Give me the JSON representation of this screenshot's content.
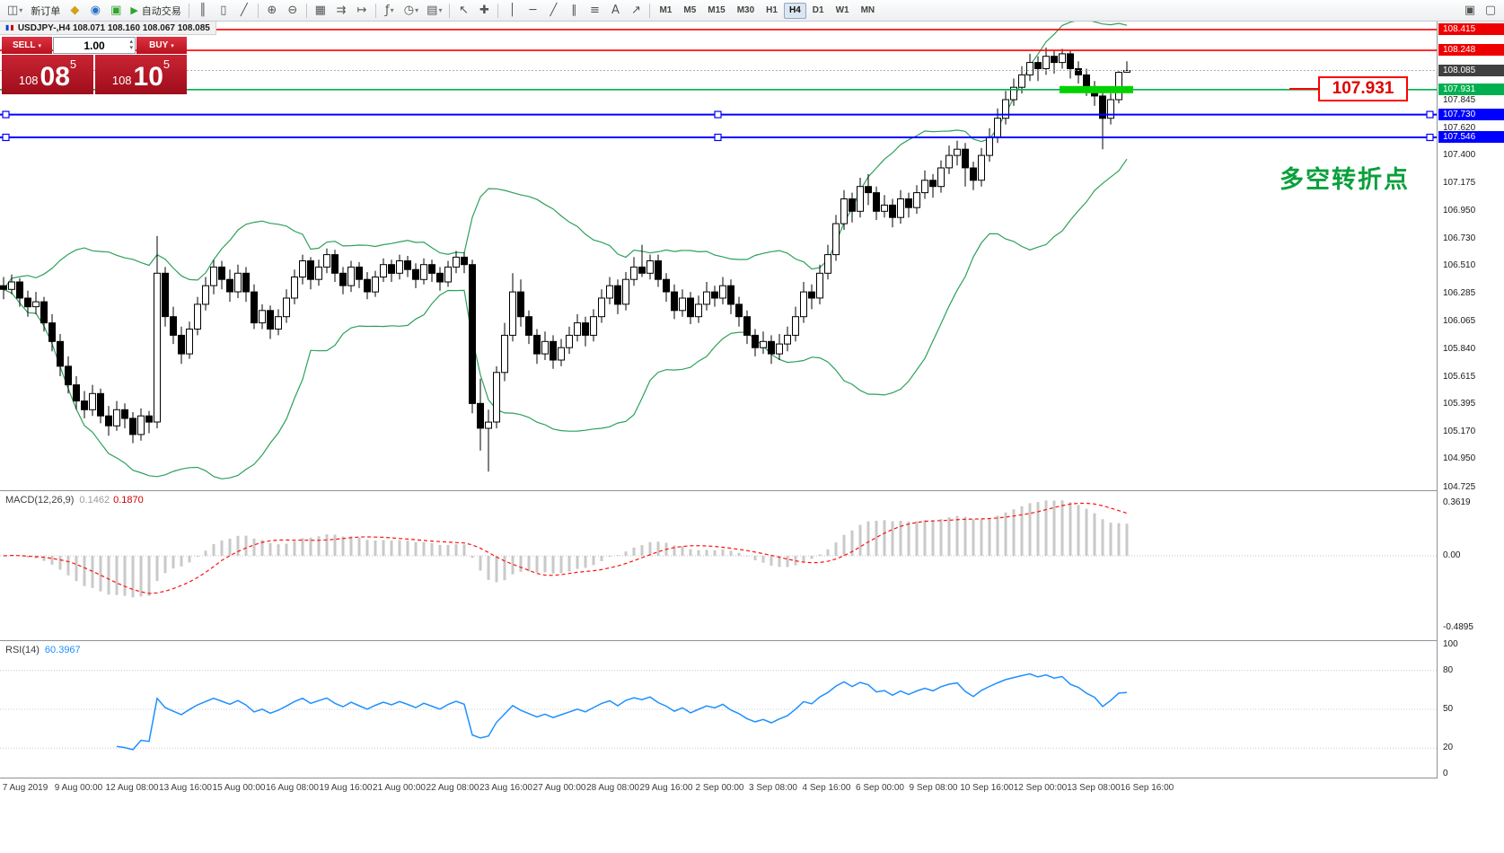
{
  "toolbar": {
    "new_order_label": "新订单",
    "autotrading_label": "自动交易",
    "timeframes": [
      "M1",
      "M5",
      "M15",
      "M30",
      "H1",
      "H4",
      "D1",
      "W1",
      "MN"
    ],
    "active_timeframe": "H4",
    "icons": {
      "new_chart": "◫",
      "market_watch": "◆",
      "navigator": "◉",
      "terminal": "▣",
      "play": "▶",
      "bar_chart": "║",
      "candles": "▯",
      "line_chart": "╱",
      "zoom_in": "⊕",
      "zoom_out": "⊖",
      "tile_windows": "▦",
      "auto_scroll": "⇉",
      "chart_shift": "↦",
      "indicators": "ƒ",
      "periods": "◷",
      "templates": "▤",
      "cursor": "↖",
      "crosshair": "✚",
      "vertical_line": "│",
      "horizontal_line": "─",
      "trendline": "╱",
      "channel": "∥",
      "fibonacci": "≡",
      "text": "A",
      "arrow": "↗",
      "window_a": "▣",
      "window_b": "▢",
      "caret": "▾",
      "spin_up": "▴",
      "spin_down": "▾"
    }
  },
  "window": {
    "chart_title": "USDJPY-,H4  108.071 108.160 108.067 108.085"
  },
  "trade_panel": {
    "sell_label": "SELL",
    "buy_label": "BUY",
    "volume": "1.00",
    "sell_price": {
      "prefix": "108",
      "big": "08",
      "sup": "5"
    },
    "buy_price": {
      "prefix": "108",
      "big": "10",
      "sup": "5"
    }
  },
  "annotations": {
    "price_callout": "107.931",
    "turning_point": "多空转折点"
  },
  "price_scale": {
    "ticks": [
      "107.845",
      "107.620",
      "107.400",
      "107.175",
      "106.950",
      "106.730",
      "106.510",
      "106.285",
      "106.065",
      "105.840",
      "105.615",
      "105.395",
      "105.170",
      "104.950",
      "104.725"
    ],
    "badges": [
      {
        "label": "108.415",
        "color": "#ee0000"
      },
      {
        "label": "108.248",
        "color": "#ee0000"
      },
      {
        "label": "108.085",
        "color": "#404040"
      },
      {
        "label": "107.931",
        "color": "#00b050"
      },
      {
        "label": "107.730",
        "color": "#0000ff"
      },
      {
        "label": "107.546",
        "color": "#0000ff"
      }
    ]
  },
  "indicators": {
    "macd": {
      "label": "MACD(12,26,9)",
      "value_main": "0.1462",
      "value_signal": "0.1870",
      "scale": [
        "0.3619",
        "0.00",
        "-0.4895"
      ],
      "params": [
        12,
        26,
        9
      ]
    },
    "rsi": {
      "label": "RSI(14)",
      "value": "60.3967",
      "scale": [
        "100",
        "80",
        "50",
        "20",
        "0"
      ],
      "period": 14,
      "levels": [
        80,
        50,
        20
      ]
    }
  },
  "time_axis": [
    "7 Aug 2019",
    "9 Aug 00:00",
    "12 Aug 08:00",
    "13 Aug 16:00",
    "15 Aug 00:00",
    "16 Aug 08:00",
    "19 Aug 16:00",
    "21 Aug 00:00",
    "22 Aug 08:00",
    "23 Aug 16:00",
    "27 Aug 00:00",
    "28 Aug 08:00",
    "29 Aug 16:00",
    "2 Sep 00:00",
    "3 Sep 08:00",
    "4 Sep 16:00",
    "6 Sep 00:00",
    "9 Sep 08:00",
    "10 Sep 16:00",
    "12 Sep 00:00",
    "13 Sep 08:00",
    "16 Sep 16:00"
  ],
  "chart_data": {
    "type": "candlestick",
    "symbol": "USDJPY-",
    "timeframe": "H4",
    "last_quote": {
      "open": 108.071,
      "high": 108.16,
      "low": 108.067,
      "close": 108.085
    },
    "y_axis_range": [
      104.7,
      108.48
    ],
    "bollinger": {
      "period": 20,
      "deviation": 2,
      "color": "#2ca05a"
    },
    "bid_price": 108.085,
    "h_lines": [
      {
        "price": 108.415,
        "color": "#ff0000"
      },
      {
        "price": 108.248,
        "color": "#ff0000"
      },
      {
        "price": 107.931,
        "color": "#00b050"
      },
      {
        "price": 107.73,
        "color": "#0000ff",
        "selected": true
      },
      {
        "price": 107.546,
        "color": "#0000ff",
        "selected": true
      }
    ],
    "support_zone": {
      "price": 107.931,
      "color": "#00d200"
    },
    "ohlc": [
      [
        106.35,
        106.42,
        106.24,
        106.32
      ],
      [
        106.32,
        106.44,
        106.28,
        106.38
      ],
      [
        106.38,
        106.41,
        106.18,
        106.25
      ],
      [
        106.25,
        106.31,
        106.1,
        106.18
      ],
      [
        106.18,
        106.3,
        106.12,
        106.22
      ],
      [
        106.22,
        106.26,
        105.98,
        106.05
      ],
      [
        106.05,
        106.12,
        105.82,
        105.9
      ],
      [
        105.9,
        105.96,
        105.62,
        105.7
      ],
      [
        105.7,
        105.78,
        105.48,
        105.55
      ],
      [
        105.55,
        105.62,
        105.35,
        105.42
      ],
      [
        105.42,
        105.5,
        105.28,
        105.35
      ],
      [
        105.35,
        105.55,
        105.3,
        105.48
      ],
      [
        105.48,
        105.52,
        105.24,
        105.3
      ],
      [
        105.3,
        105.38,
        105.14,
        105.22
      ],
      [
        105.22,
        105.42,
        105.18,
        105.35
      ],
      [
        105.35,
        105.4,
        105.2,
        105.28
      ],
      [
        105.28,
        105.33,
        105.08,
        105.15
      ],
      [
        105.15,
        105.36,
        105.1,
        105.3
      ],
      [
        105.3,
        105.34,
        105.16,
        105.25
      ],
      [
        105.25,
        106.75,
        105.2,
        106.45
      ],
      [
        106.45,
        106.5,
        106.02,
        106.1
      ],
      [
        106.1,
        106.18,
        105.88,
        105.95
      ],
      [
        105.95,
        106.02,
        105.72,
        105.8
      ],
      [
        105.8,
        106.06,
        105.76,
        106.0
      ],
      [
        106.0,
        106.26,
        105.95,
        106.2
      ],
      [
        106.2,
        106.42,
        106.15,
        106.35
      ],
      [
        106.35,
        106.56,
        106.28,
        106.5
      ],
      [
        106.5,
        106.55,
        106.32,
        106.4
      ],
      [
        106.4,
        106.48,
        106.22,
        106.3
      ],
      [
        106.3,
        106.52,
        106.25,
        106.45
      ],
      [
        106.45,
        106.5,
        106.22,
        106.3
      ],
      [
        106.3,
        106.36,
        106.0,
        106.05
      ],
      [
        106.05,
        106.2,
        106.0,
        106.15
      ],
      [
        106.15,
        106.19,
        105.92,
        106.0
      ],
      [
        106.0,
        106.16,
        105.95,
        106.1
      ],
      [
        106.1,
        106.32,
        106.05,
        106.25
      ],
      [
        106.25,
        106.48,
        106.2,
        106.42
      ],
      [
        106.42,
        106.6,
        106.36,
        106.55
      ],
      [
        106.55,
        106.58,
        106.32,
        106.4
      ],
      [
        106.4,
        106.56,
        106.35,
        106.5
      ],
      [
        106.5,
        106.65,
        106.45,
        106.6
      ],
      [
        106.6,
        106.64,
        106.38,
        106.45
      ],
      [
        106.45,
        106.5,
        106.28,
        106.35
      ],
      [
        106.35,
        106.55,
        106.3,
        106.5
      ],
      [
        106.5,
        106.54,
        106.33,
        106.4
      ],
      [
        106.4,
        106.46,
        106.24,
        106.3
      ],
      [
        106.3,
        106.47,
        106.26,
        106.42
      ],
      [
        106.42,
        106.57,
        106.38,
        106.52
      ],
      [
        106.52,
        106.56,
        106.38,
        106.45
      ],
      [
        106.45,
        106.6,
        106.4,
        106.55
      ],
      [
        106.55,
        106.59,
        106.42,
        106.48
      ],
      [
        106.48,
        106.53,
        106.33,
        106.4
      ],
      [
        106.4,
        106.57,
        106.36,
        106.52
      ],
      [
        106.52,
        106.56,
        106.38,
        106.45
      ],
      [
        106.45,
        106.5,
        106.31,
        106.38
      ],
      [
        106.38,
        106.55,
        106.34,
        106.5
      ],
      [
        106.5,
        106.63,
        106.45,
        106.58
      ],
      [
        106.58,
        106.62,
        106.45,
        106.52
      ],
      [
        106.52,
        106.56,
        105.32,
        105.4
      ],
      [
        105.4,
        105.6,
        105.02,
        105.2
      ],
      [
        105.2,
        105.35,
        104.85,
        105.25
      ],
      [
        105.25,
        105.7,
        105.2,
        105.65
      ],
      [
        105.65,
        106.05,
        105.58,
        105.95
      ],
      [
        105.95,
        106.45,
        105.9,
        106.3
      ],
      [
        106.3,
        106.4,
        106.02,
        106.1
      ],
      [
        106.1,
        106.15,
        105.88,
        105.95
      ],
      [
        105.95,
        106.0,
        105.72,
        105.8
      ],
      [
        105.8,
        105.98,
        105.75,
        105.9
      ],
      [
        105.9,
        105.95,
        105.68,
        105.75
      ],
      [
        105.75,
        105.92,
        105.7,
        105.85
      ],
      [
        105.85,
        106.02,
        105.8,
        105.95
      ],
      [
        105.95,
        106.12,
        105.9,
        106.05
      ],
      [
        106.05,
        106.1,
        105.86,
        105.95
      ],
      [
        105.95,
        106.16,
        105.9,
        106.1
      ],
      [
        106.1,
        106.32,
        106.05,
        106.25
      ],
      [
        106.25,
        106.42,
        106.2,
        106.35
      ],
      [
        106.35,
        106.4,
        106.12,
        106.2
      ],
      [
        106.2,
        106.46,
        106.15,
        106.4
      ],
      [
        106.4,
        106.58,
        106.35,
        106.5
      ],
      [
        106.5,
        106.68,
        106.42,
        106.45
      ],
      [
        106.45,
        106.6,
        106.4,
        106.55
      ],
      [
        106.55,
        106.6,
        106.34,
        106.4
      ],
      [
        106.4,
        106.45,
        106.22,
        106.3
      ],
      [
        106.3,
        106.36,
        106.08,
        106.15
      ],
      [
        106.15,
        106.32,
        106.1,
        106.25
      ],
      [
        106.25,
        106.3,
        106.04,
        106.1
      ],
      [
        106.1,
        106.27,
        106.05,
        106.2
      ],
      [
        106.2,
        106.38,
        106.15,
        106.3
      ],
      [
        106.3,
        106.35,
        106.18,
        106.25
      ],
      [
        106.25,
        106.42,
        106.2,
        106.35
      ],
      [
        106.35,
        106.4,
        106.12,
        106.2
      ],
      [
        106.2,
        106.26,
        106.02,
        106.1
      ],
      [
        106.1,
        106.15,
        105.88,
        105.95
      ],
      [
        105.95,
        106.0,
        105.78,
        105.85
      ],
      [
        105.85,
        105.98,
        105.8,
        105.9
      ],
      [
        105.9,
        105.95,
        105.72,
        105.8
      ],
      [
        105.8,
        105.96,
        105.75,
        105.88
      ],
      [
        105.88,
        106.02,
        105.82,
        105.95
      ],
      [
        105.95,
        106.18,
        105.9,
        106.1
      ],
      [
        106.1,
        106.38,
        106.05,
        106.3
      ],
      [
        106.3,
        106.36,
        106.16,
        106.25
      ],
      [
        106.25,
        106.52,
        106.2,
        106.45
      ],
      [
        106.45,
        106.68,
        106.4,
        106.6
      ],
      [
        106.6,
        106.92,
        106.55,
        106.85
      ],
      [
        106.85,
        107.12,
        106.8,
        107.05
      ],
      [
        107.05,
        107.1,
        106.86,
        106.95
      ],
      [
        106.95,
        107.22,
        106.9,
        107.15
      ],
      [
        107.15,
        107.25,
        107.0,
        107.1
      ],
      [
        107.1,
        107.15,
        106.88,
        106.95
      ],
      [
        106.95,
        107.08,
        106.9,
        107.0
      ],
      [
        107.0,
        107.05,
        106.82,
        106.9
      ],
      [
        106.9,
        107.12,
        106.85,
        107.05
      ],
      [
        107.05,
        107.1,
        106.9,
        106.98
      ],
      [
        106.98,
        107.16,
        106.93,
        107.1
      ],
      [
        107.1,
        107.28,
        107.05,
        107.2
      ],
      [
        107.2,
        107.25,
        107.06,
        107.15
      ],
      [
        107.15,
        107.36,
        107.1,
        107.3
      ],
      [
        107.3,
        107.48,
        107.25,
        107.4
      ],
      [
        107.4,
        107.52,
        107.32,
        107.45
      ],
      [
        107.45,
        107.5,
        107.15,
        107.3
      ],
      [
        107.3,
        107.35,
        107.12,
        107.2
      ],
      [
        107.2,
        107.46,
        107.15,
        107.4
      ],
      [
        107.4,
        107.62,
        107.35,
        107.55
      ],
      [
        107.55,
        107.78,
        107.5,
        107.7
      ],
      [
        107.7,
        107.92,
        107.65,
        107.85
      ],
      [
        107.85,
        108.02,
        107.8,
        107.95
      ],
      [
        107.95,
        108.12,
        107.9,
        108.05
      ],
      [
        108.05,
        108.22,
        108.0,
        108.15
      ],
      [
        108.15,
        108.2,
        108.0,
        108.1
      ],
      [
        108.1,
        108.27,
        108.05,
        108.2
      ],
      [
        108.2,
        108.25,
        108.06,
        108.15
      ],
      [
        108.15,
        108.26,
        108.1,
        108.22
      ],
      [
        108.22,
        108.25,
        108.02,
        108.1
      ],
      [
        108.1,
        108.16,
        107.98,
        108.05
      ],
      [
        108.05,
        108.1,
        107.88,
        107.95
      ],
      [
        107.95,
        108.0,
        107.8,
        107.88
      ],
      [
        107.88,
        107.92,
        107.45,
        107.7
      ],
      [
        107.7,
        107.9,
        107.65,
        107.85
      ],
      [
        107.85,
        108.08,
        107.82,
        108.07
      ],
      [
        108.071,
        108.16,
        108.067,
        108.085
      ]
    ]
  }
}
